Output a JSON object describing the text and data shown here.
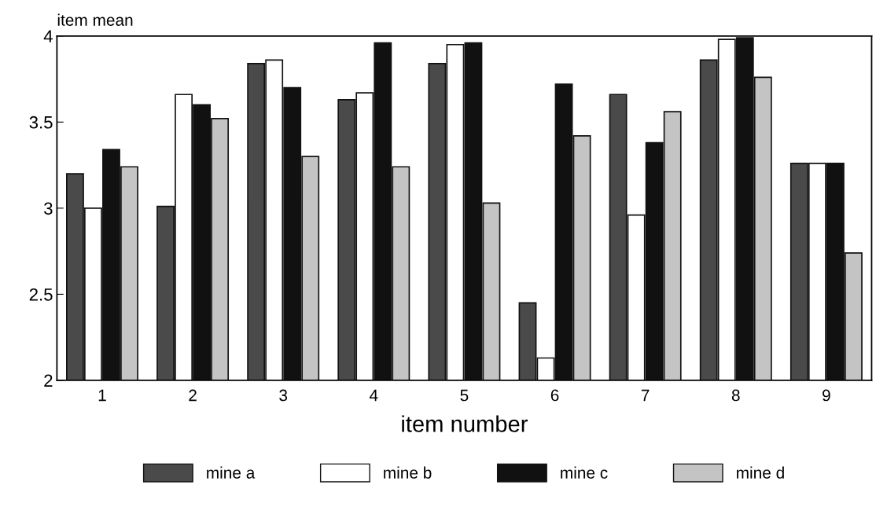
{
  "chart_data": {
    "type": "bar",
    "xlabel": "item number",
    "ylabel": "item mean",
    "categories": [
      "1",
      "2",
      "3",
      "4",
      "5",
      "6",
      "7",
      "8",
      "9"
    ],
    "series": [
      {
        "name": "mine a",
        "color": "#4a4a4a",
        "values": [
          3.2,
          3.01,
          3.84,
          3.63,
          3.84,
          2.45,
          3.66,
          3.86,
          3.26
        ]
      },
      {
        "name": "mine b",
        "color": "#ffffff",
        "values": [
          3.0,
          3.66,
          3.86,
          3.67,
          3.95,
          2.13,
          2.96,
          3.98,
          3.26
        ]
      },
      {
        "name": "mine c",
        "color": "#111111",
        "values": [
          3.34,
          3.6,
          3.7,
          3.96,
          3.96,
          3.72,
          3.38,
          3.99,
          3.26
        ]
      },
      {
        "name": "mine d",
        "color": "#c4c4c4",
        "values": [
          3.24,
          3.52,
          3.3,
          3.24,
          3.03,
          3.42,
          3.56,
          3.76,
          2.74
        ]
      }
    ],
    "ylim": [
      2,
      4
    ],
    "yticks": [
      2,
      2.5,
      3,
      3.5,
      4
    ],
    "grid": false,
    "legend": "bottom"
  }
}
